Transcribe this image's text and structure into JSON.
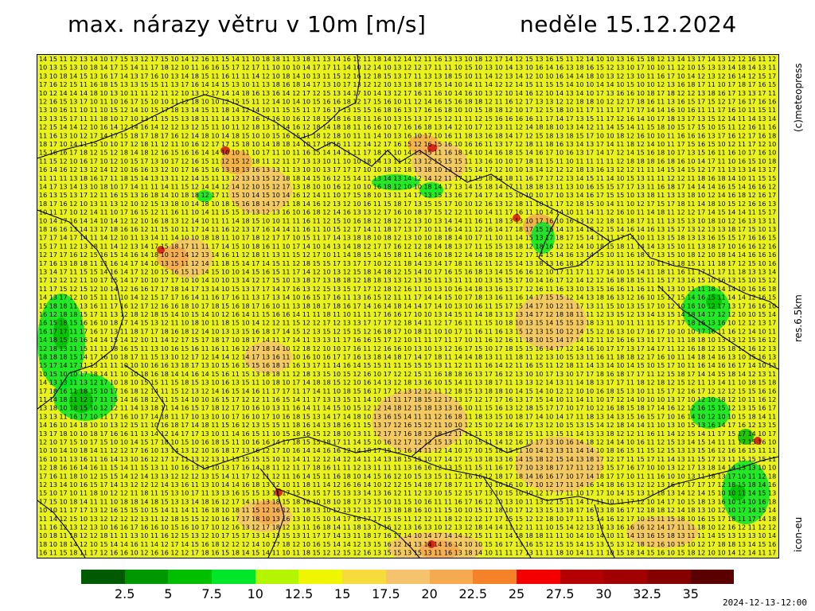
{
  "header": {
    "title_left": "max. nárazy větru v 10m [m/s]",
    "title_right": "neděle 15.12.2024"
  },
  "side_labels": {
    "copyright": "(c)meteopress",
    "resolution": "res.6.5km",
    "model": "icon-eu"
  },
  "legend": {
    "colors": [
      "#005a00",
      "#009600",
      "#00be00",
      "#00e628",
      "#b4f500",
      "#f0f500",
      "#f5dc3c",
      "#f5c36e",
      "#f5aa50",
      "#f58228",
      "#f50000",
      "#b40000",
      "#a00000",
      "#870000",
      "#5a0000"
    ],
    "ticks": [
      "2.5",
      "5",
      "7.5",
      "10",
      "12.5",
      "15",
      "17.5",
      "20",
      "22.5",
      "25",
      "27.5",
      "30",
      "32.5",
      "35"
    ]
  },
  "timestamp": "2024-12-13-12:00"
}
